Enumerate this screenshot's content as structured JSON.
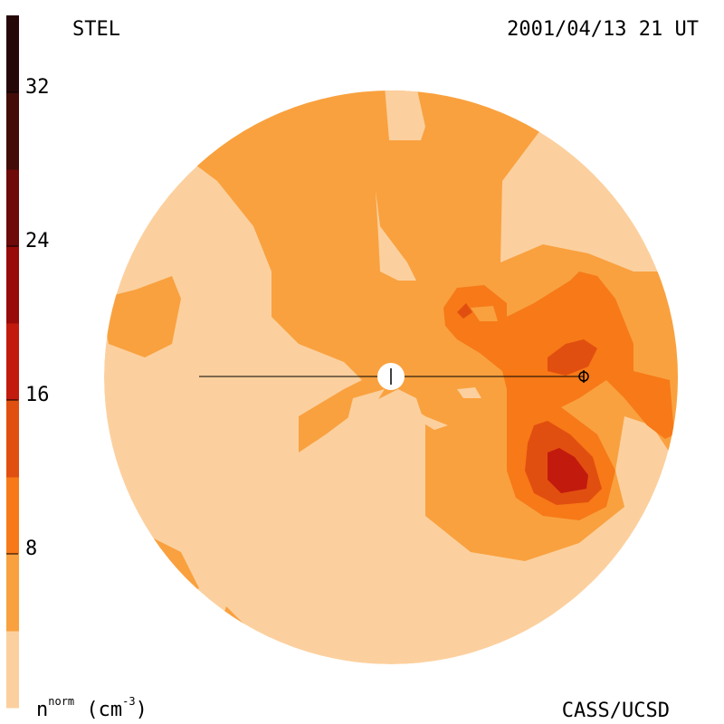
{
  "header": {
    "instrument": "STEL",
    "timestamp": "2001/04/13 21 UT"
  },
  "footer": {
    "credit": "CASS/UCSD"
  },
  "colorbar": {
    "unit_main": "n",
    "unit_sup": "norm",
    "unit_paren": "(cm",
    "unit_exp": "-3",
    "unit_close": ")",
    "tick_labels": [
      "8",
      "16",
      "24",
      "32"
    ]
  },
  "chart_data": {
    "type": "heatmap",
    "title": "STEL",
    "subtitle": "2001/04/13 21 UT",
    "colorbar_label": "n^norm (cm^-3)",
    "colorbar_range": [
      0,
      36
    ],
    "colorbar_ticks": [
      8,
      16,
      24,
      32
    ],
    "levels": [
      {
        "from": 0,
        "to": 4,
        "color": "#fcd09e"
      },
      {
        "from": 4,
        "to": 8,
        "color": "#f9a13f"
      },
      {
        "from": 8,
        "to": 12,
        "color": "#f77917"
      },
      {
        "from": 12,
        "to": 16,
        "color": "#e14f10"
      },
      {
        "from": 16,
        "to": 20,
        "color": "#c21b0e"
      },
      {
        "from": 20,
        "to": 24,
        "color": "#980b08"
      },
      {
        "from": 24,
        "to": 28,
        "color": "#6e0a0a"
      },
      {
        "from": 28,
        "to": 32,
        "color": "#430c09"
      },
      {
        "from": 32,
        "to": 36,
        "color": "#260707"
      }
    ],
    "legend_position": "left",
    "grid": false,
    "markers": [
      "Sun (center)",
      "Earth"
    ]
  }
}
